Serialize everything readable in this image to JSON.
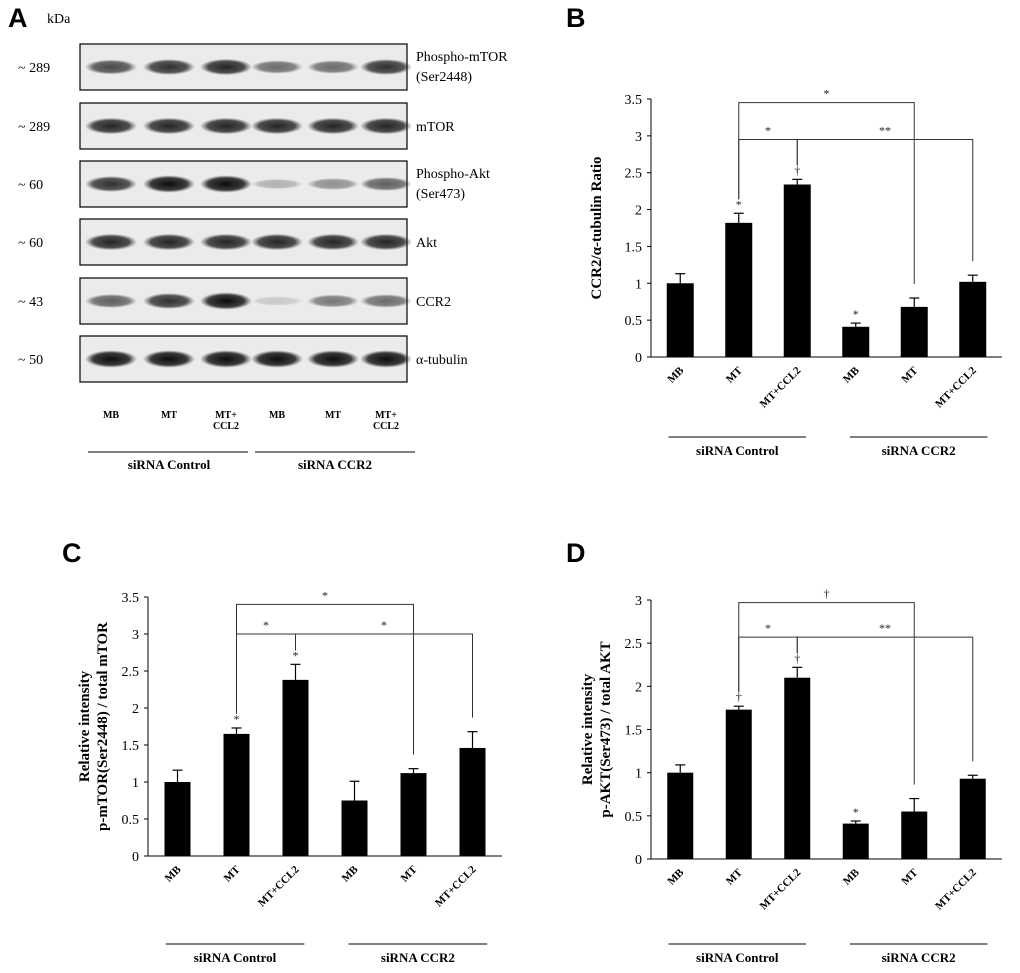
{
  "panels": [
    {
      "id": "A",
      "label": "A"
    },
    {
      "id": "B",
      "label": "B"
    },
    {
      "id": "C",
      "label": "C"
    },
    {
      "id": "D",
      "label": "D"
    }
  ],
  "western_blot": {
    "kda_header": "kDa",
    "lanes": [
      "MB",
      "MT",
      "MT+\nCCL2",
      "MB",
      "MT",
      "MT+\nCCL2"
    ],
    "groups": [
      "siRNA Control",
      "siRNA CCR2"
    ],
    "rows": [
      {
        "mw": "~  289",
        "label": "Phospho-mTOR\n(Ser2448)",
        "intensities": [
          0.7,
          0.8,
          0.85,
          0.55,
          0.55,
          0.8
        ]
      },
      {
        "mw": "~  289",
        "label": "mTOR",
        "intensities": [
          0.85,
          0.85,
          0.85,
          0.85,
          0.85,
          0.85
        ]
      },
      {
        "mw": "~  60",
        "label": "Phospho-Akt\n(Ser473)",
        "intensities": [
          0.8,
          0.95,
          0.95,
          0.25,
          0.4,
          0.6
        ]
      },
      {
        "mw": "~  60",
        "label": "Akt",
        "intensities": [
          0.85,
          0.85,
          0.85,
          0.85,
          0.85,
          0.85
        ]
      },
      {
        "mw": "~  43",
        "label": "CCR2",
        "intensities": [
          0.6,
          0.8,
          0.95,
          0.15,
          0.5,
          0.55
        ]
      },
      {
        "mw": "~  50",
        "label": "α-tubulin",
        "intensities": [
          0.95,
          0.95,
          0.95,
          0.95,
          0.95,
          0.95
        ]
      }
    ]
  },
  "chart_data": [
    {
      "panel": "B",
      "type": "bar",
      "title": "",
      "ylabel": "CCR2/α-tubulin Ratio",
      "ylim": [
        0,
        3.5
      ],
      "yticks": [
        0,
        0.5,
        1,
        1.5,
        2,
        2.5,
        3,
        3.5
      ],
      "ytick_labels": [
        "0",
        "0.5",
        "1",
        "1.5",
        "2",
        "2.5",
        "3",
        "3.5"
      ],
      "categories": [
        "MB",
        "MT",
        "MT+CCL2",
        "MB",
        "MT",
        "MT+CCL2"
      ],
      "values": [
        1.0,
        1.82,
        2.34,
        0.41,
        0.68,
        1.02
      ],
      "errors": [
        0.13,
        0.13,
        0.07,
        0.05,
        0.12,
        0.09
      ],
      "bar_marks": [
        "",
        "*",
        "†",
        "*",
        "",
        ""
      ],
      "groups": [
        "siRNA Control",
        "siRNA CCR2"
      ],
      "brackets": [
        {
          "from": 1,
          "to": 4,
          "mark": "*",
          "level": 3.45
        },
        {
          "from": 1,
          "to": 2,
          "mark": "*",
          "level": 2.95
        },
        {
          "from": 2,
          "to": 5,
          "mark": "**",
          "level": 2.95
        }
      ]
    },
    {
      "panel": "C",
      "type": "bar",
      "title": "",
      "ylabel": "Relative intensity\np-mTOR(Ser2448) / total mTOR",
      "ylim": [
        0,
        3.5
      ],
      "yticks": [
        0,
        0.5,
        1,
        1.5,
        2,
        2.5,
        3,
        3.5
      ],
      "ytick_labels": [
        "0",
        "0.5",
        "1",
        "1.5",
        "2",
        "2.5",
        "3",
        "3.5"
      ],
      "categories": [
        "MB",
        "MT",
        "MT+CCL2",
        "MB",
        "MT",
        "MT+CCL2"
      ],
      "values": [
        1.0,
        1.65,
        2.38,
        0.75,
        1.12,
        1.46
      ],
      "errors": [
        0.16,
        0.08,
        0.21,
        0.26,
        0.06,
        0.22
      ],
      "bar_marks": [
        "",
        "*",
        "*",
        "",
        "",
        ""
      ],
      "groups": [
        "siRNA Control",
        "siRNA CCR2"
      ],
      "brackets": [
        {
          "from": 1,
          "to": 4,
          "mark": "*",
          "level": 3.4
        },
        {
          "from": 1,
          "to": 2,
          "mark": "*",
          "level": 3.0
        },
        {
          "from": 2,
          "to": 5,
          "mark": "*",
          "level": 3.0
        }
      ]
    },
    {
      "panel": "D",
      "type": "bar",
      "title": "",
      "ylabel": "Relative intensity\np-AKT(Ser473) / total AKT",
      "ylim": [
        0,
        3
      ],
      "yticks": [
        0,
        0.5,
        1,
        1.5,
        2,
        2.5,
        3
      ],
      "ytick_labels": [
        "0",
        "0.5",
        "1",
        "1.5",
        "2",
        "2.5",
        "3"
      ],
      "categories": [
        "MB",
        "MT",
        "MT+CCL2",
        "MB",
        "MT",
        "MT+CCL2"
      ],
      "values": [
        1.0,
        1.73,
        2.1,
        0.41,
        0.55,
        0.93
      ],
      "errors": [
        0.09,
        0.04,
        0.12,
        0.03,
        0.15,
        0.04
      ],
      "bar_marks": [
        "",
        "†",
        "†",
        "*",
        "",
        ""
      ],
      "groups": [
        "siRNA Control",
        "siRNA CCR2"
      ],
      "brackets": [
        {
          "from": 1,
          "to": 4,
          "mark": "†",
          "level": 2.97
        },
        {
          "from": 1,
          "to": 2,
          "mark": "*",
          "level": 2.57
        },
        {
          "from": 2,
          "to": 5,
          "mark": "**",
          "level": 2.57
        }
      ]
    }
  ]
}
